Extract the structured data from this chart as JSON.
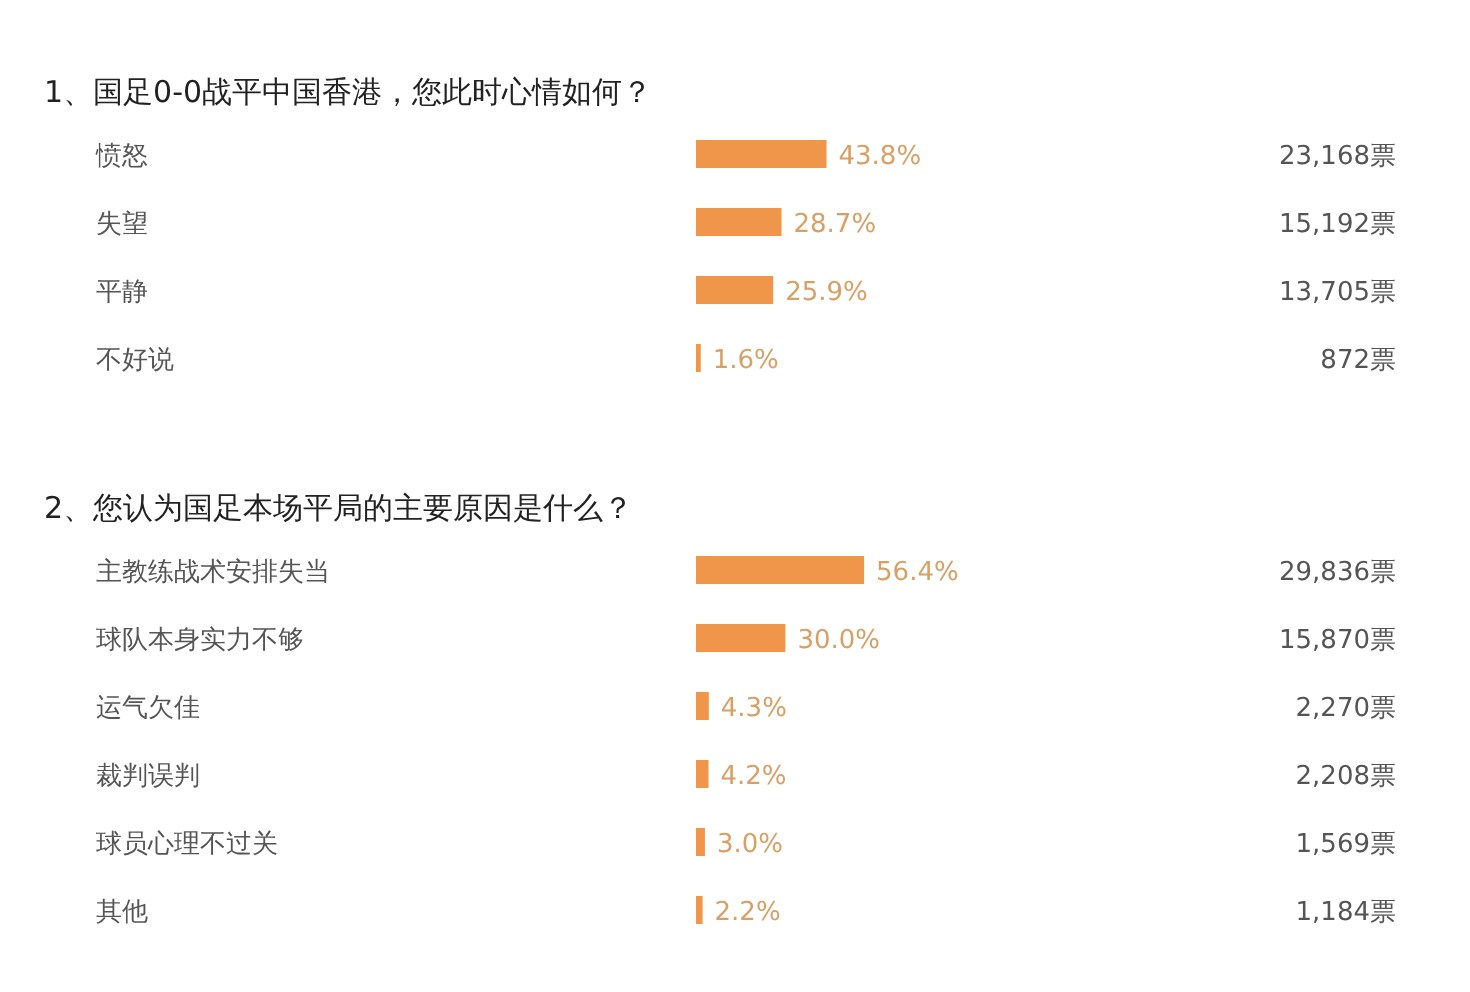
{
  "chart_data": [
    {
      "type": "bar",
      "orientation": "horizontal",
      "title": "1、国足0-0战平中国香港，您此时心情如何？",
      "categories": [
        "愤怒",
        "失望",
        "平静",
        "不好说"
      ],
      "values": [
        43.8,
        28.7,
        25.9,
        1.6
      ],
      "value_labels": [
        "43.8%",
        "28.7%",
        "25.9%",
        "1.6%"
      ],
      "color": "#f0964b",
      "annotations": [
        "23,168票",
        "15,192票",
        "13,705票",
        "872票"
      ]
    },
    {
      "type": "bar",
      "orientation": "horizontal",
      "title": "2、您认为国足本场平局的主要原因是什么？",
      "categories": [
        "主教练战术安排失当",
        "球队本身实力不够",
        "运气欠佳",
        "裁判误判",
        "球员心理不过关",
        "其他"
      ],
      "values": [
        56.4,
        30.0,
        4.3,
        4.2,
        3.0,
        2.2
      ],
      "value_labels": [
        "56.4%",
        "30.0%",
        "4.3%",
        "4.2%",
        "3.0%",
        "2.2%"
      ],
      "color": "#f0964b",
      "annotations": [
        "29,836票",
        "15,870票",
        "2,270票",
        "2,208票",
        "1,569票",
        "1,184票"
      ]
    }
  ]
}
